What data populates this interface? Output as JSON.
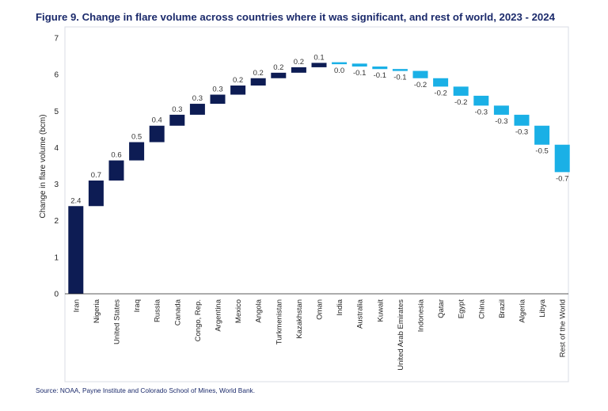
{
  "figure": {
    "title": "Figure 9. Change in flare volume across countries where it was significant, and rest of world, 2023 - 2024",
    "source": "Source: NOAA, Payne Institute and Colorado School of Mines, World Bank."
  },
  "colors": {
    "increase": "#0d1c54",
    "decrease": "#1ab0e6",
    "frame": "#d9dde4",
    "axis": "#222222"
  },
  "chart_data": {
    "type": "bar",
    "subtype": "waterfall",
    "ylabel": "Change in flare volume (bcm)",
    "xlabel": "",
    "ylim": [
      0,
      7
    ],
    "yticks": [
      0,
      1,
      2,
      3,
      4,
      5,
      6,
      7
    ],
    "grid": false,
    "categories": [
      "Iran",
      "Nigeria",
      "United States",
      "Iraq",
      "Russia",
      "Canada",
      "Congo, Rep.",
      "Argentina",
      "Mexico",
      "Angola",
      "Turkmenistan",
      "Kazakhstan",
      "Oman",
      "India",
      "Australia",
      "Kuwait",
      "United Arab Emirates",
      "Indonesia",
      "Qatar",
      "Egypt",
      "China",
      "Brazil",
      "Algeria",
      "Libya",
      "Rest of the World"
    ],
    "values": [
      2.4,
      0.7,
      0.6,
      0.5,
      0.4,
      0.3,
      0.3,
      0.3,
      0.2,
      0.2,
      0.2,
      0.2,
      0.1,
      0.0,
      -0.1,
      -0.1,
      -0.1,
      -0.2,
      -0.2,
      -0.2,
      -0.3,
      -0.3,
      -0.3,
      -0.5,
      -0.7
    ],
    "start": [
      0,
      2.4,
      3.1,
      3.65,
      4.15,
      4.6,
      4.9,
      5.2,
      5.45,
      5.7,
      5.9,
      6.05,
      6.2,
      6.32,
      6.3,
      6.22,
      6.15,
      6.1,
      5.9,
      5.67,
      5.42,
      5.15,
      4.9,
      4.6,
      4.08
    ],
    "end": [
      2.4,
      3.1,
      3.65,
      4.15,
      4.6,
      4.9,
      5.2,
      5.45,
      5.7,
      5.9,
      6.05,
      6.2,
      6.32,
      6.3,
      6.22,
      6.15,
      6.1,
      5.9,
      5.67,
      5.42,
      5.15,
      4.9,
      4.6,
      4.08,
      3.33
    ],
    "data_labels": [
      "2.4",
      "0.7",
      "0.6",
      "0.5",
      "0.4",
      "0.3",
      "0.3",
      "0.3",
      "0.2",
      "0.2",
      "0.2",
      "0.2",
      "0.1",
      "0.0",
      "-0.1",
      "-0.1",
      "-0.1",
      "-0.2",
      "-0.2",
      "-0.2",
      "-0.3",
      "-0.3",
      "-0.3",
      "-0.5",
      "-0.7"
    ]
  }
}
